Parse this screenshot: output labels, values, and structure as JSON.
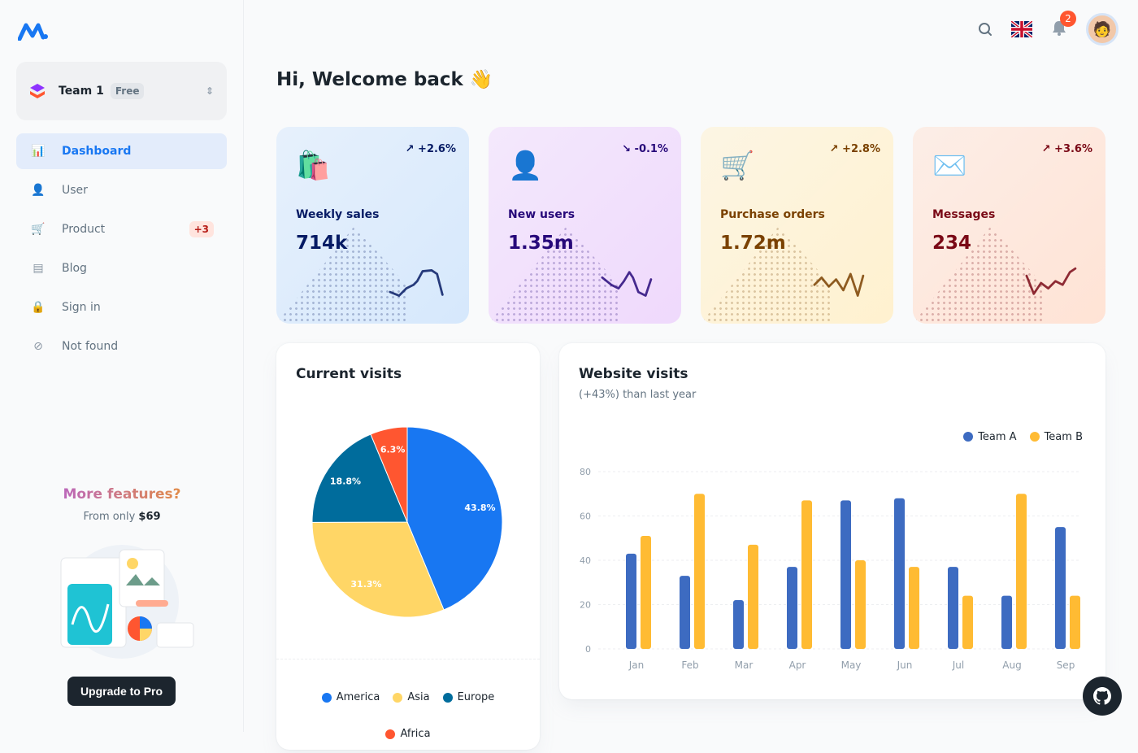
{
  "sidebar": {
    "team": {
      "name": "Team 1",
      "plan": "Free"
    },
    "items": [
      {
        "label": "Dashboard",
        "icon": "chart-icon",
        "active": true
      },
      {
        "label": "User",
        "icon": "user-icon"
      },
      {
        "label": "Product",
        "icon": "cart-icon",
        "badge": "+3"
      },
      {
        "label": "Blog",
        "icon": "blog-icon"
      },
      {
        "label": "Sign in",
        "icon": "lock-icon"
      },
      {
        "label": "Not found",
        "icon": "disabled-icon"
      }
    ],
    "promo": {
      "title": "More features?",
      "subtitle_prefix": "From only",
      "price": "$69",
      "button": "Upgrade to Pro"
    }
  },
  "header": {
    "notifications": "2",
    "language": "English (UK)"
  },
  "greeting": "Hi, Welcome back 👋",
  "stats": [
    {
      "label": "Weekly sales",
      "value": "714k",
      "trend": "+2.6%",
      "direction": "up",
      "color": "#061b64",
      "bg": "#d6e8fc"
    },
    {
      "label": "New users",
      "value": "1.35m",
      "trend": "-0.1%",
      "direction": "down",
      "color": "#27097a",
      "bg": "#efd9fc"
    },
    {
      "label": "Purchase orders",
      "value": "1.72m",
      "trend": "+2.8%",
      "direction": "up",
      "color": "#7a4100",
      "bg": "#fff1cf"
    },
    {
      "label": "Messages",
      "value": "234",
      "trend": "+3.6%",
      "direction": "up",
      "color": "#7a0916",
      "bg": "#ffe3d5"
    }
  ],
  "chart_data": [
    {
      "type": "pie",
      "title": "Current visits",
      "categories": [
        "America",
        "Asia",
        "Europe",
        "Africa"
      ],
      "values": [
        43.8,
        31.3,
        18.8,
        6.3
      ],
      "colors": [
        "#1877f2",
        "#ffd666",
        "#006c9c",
        "#ff5630"
      ],
      "legend": "bottom"
    },
    {
      "type": "bar",
      "title": "Website visits",
      "subtitle": "(+43%) than last year",
      "categories": [
        "Jan",
        "Feb",
        "Mar",
        "Apr",
        "May",
        "Jun",
        "Jul",
        "Aug",
        "Sep"
      ],
      "series": [
        {
          "name": "Team A",
          "color": "#3d6bc1",
          "values": [
            43,
            33,
            22,
            37,
            67,
            68,
            37,
            24,
            55
          ]
        },
        {
          "name": "Team B",
          "color": "#ffbb33",
          "values": [
            51,
            70,
            47,
            67,
            40,
            37,
            24,
            70,
            24
          ]
        }
      ],
      "yticks": [
        0,
        20,
        40,
        60,
        80
      ],
      "ylim": [
        0,
        80
      ],
      "grid": true,
      "legend": "top-right"
    }
  ]
}
